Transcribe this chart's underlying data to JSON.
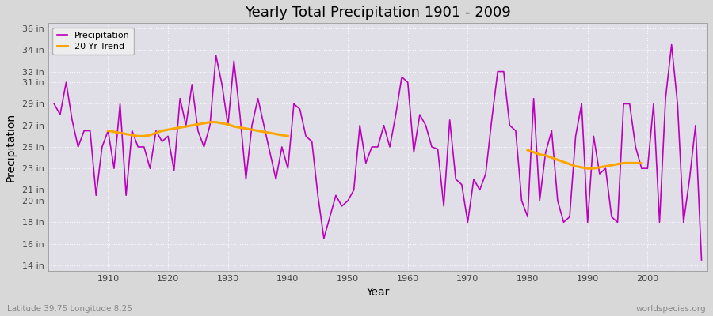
{
  "title": "Yearly Total Precipitation 1901 - 2009",
  "xlabel": "Year",
  "ylabel": "Precipitation",
  "lat_lon_label": "Latitude 39.75 Longitude 8.25",
  "watermark": "worldspecies.org",
  "precip_line_color": "#bb00bb",
  "trend_line_color": "#ffa500",
  "fig_bg_color": "#d8d8d8",
  "plot_bg_color": "#e0dfe8",
  "ylim": [
    13.5,
    36.5
  ],
  "yticks": [
    14,
    16,
    18,
    20,
    21,
    23,
    25,
    27,
    29,
    31,
    32,
    34,
    36
  ],
  "ytick_labels": [
    "14 in",
    "16 in",
    "18 in",
    "20 in",
    "21 in",
    "23 in",
    "25 in",
    "27 in",
    "29 in",
    "31 in",
    "32 in",
    "34 in",
    "36 in"
  ],
  "xlim": [
    1900,
    2010
  ],
  "xticks": [
    1910,
    1920,
    1930,
    1940,
    1950,
    1960,
    1970,
    1980,
    1990,
    2000
  ],
  "years": [
    1901,
    1902,
    1903,
    1904,
    1905,
    1906,
    1907,
    1908,
    1909,
    1910,
    1911,
    1912,
    1913,
    1914,
    1915,
    1916,
    1917,
    1918,
    1919,
    1920,
    1921,
    1922,
    1923,
    1924,
    1925,
    1926,
    1927,
    1928,
    1929,
    1930,
    1931,
    1932,
    1933,
    1934,
    1935,
    1936,
    1937,
    1938,
    1939,
    1940,
    1941,
    1942,
    1943,
    1944,
    1945,
    1946,
    1947,
    1948,
    1949,
    1950,
    1951,
    1952,
    1953,
    1954,
    1955,
    1956,
    1957,
    1958,
    1959,
    1960,
    1961,
    1962,
    1963,
    1964,
    1965,
    1966,
    1967,
    1968,
    1969,
    1970,
    1971,
    1972,
    1973,
    1974,
    1975,
    1976,
    1977,
    1978,
    1979,
    1980,
    1981,
    1982,
    1983,
    1984,
    1985,
    1986,
    1987,
    1988,
    1989,
    1990,
    1991,
    1992,
    1993,
    1994,
    1995,
    1996,
    1997,
    1998,
    1999,
    2000,
    2001,
    2002,
    2003,
    2004,
    2005,
    2006,
    2007,
    2008,
    2009
  ],
  "precip": [
    29.0,
    28.0,
    31.0,
    27.5,
    25.0,
    26.5,
    26.5,
    20.5,
    25.0,
    26.5,
    23.0,
    29.0,
    20.5,
    26.5,
    25.0,
    25.0,
    23.0,
    26.5,
    25.5,
    26.0,
    22.8,
    29.5,
    27.0,
    30.8,
    26.5,
    25.0,
    27.0,
    33.5,
    30.8,
    27.0,
    33.0,
    28.0,
    22.0,
    27.0,
    29.5,
    27.0,
    24.5,
    22.0,
    25.0,
    23.0,
    29.0,
    28.5,
    26.0,
    25.5,
    20.5,
    16.5,
    18.5,
    20.5,
    19.5,
    20.0,
    21.0,
    27.0,
    23.5,
    25.0,
    25.0,
    27.0,
    25.0,
    28.0,
    31.5,
    31.0,
    24.5,
    28.0,
    27.0,
    25.0,
    24.8,
    19.5,
    27.5,
    22.0,
    21.5,
    18.0,
    22.0,
    21.0,
    22.5,
    27.5,
    32.0,
    32.0,
    27.0,
    26.5,
    20.0,
    18.5,
    29.5,
    20.0,
    24.5,
    26.5,
    20.0,
    18.0,
    18.5,
    26.0,
    29.0,
    18.0,
    26.0,
    22.5,
    23.0,
    18.5,
    18.0,
    29.0,
    29.0,
    25.0,
    23.0,
    23.0,
    29.0,
    18.0,
    29.5,
    34.5,
    29.0,
    18.0,
    22.0,
    27.0,
    14.5
  ],
  "trend_segments": [
    {
      "years": [
        1910,
        1911,
        1912,
        1913,
        1914,
        1915,
        1916,
        1917,
        1918,
        1919,
        1920,
        1921,
        1922,
        1923,
        1924,
        1925,
        1926,
        1927,
        1928,
        1929,
        1930,
        1931,
        1932,
        1933,
        1934,
        1935,
        1936,
        1937,
        1938,
        1939,
        1940
      ],
      "values": [
        26.5,
        26.4,
        26.3,
        26.2,
        26.1,
        26.0,
        26.0,
        26.1,
        26.3,
        26.5,
        26.6,
        26.7,
        26.8,
        26.9,
        27.0,
        27.1,
        27.2,
        27.3,
        27.3,
        27.2,
        27.1,
        26.9,
        26.8,
        26.7,
        26.6,
        26.5,
        26.4,
        26.3,
        26.2,
        26.1,
        26.0
      ]
    },
    {
      "years": [
        1980,
        1981,
        1982,
        1983,
        1984,
        1985,
        1986,
        1987,
        1988,
        1989,
        1990,
        1991,
        1992,
        1993,
        1994,
        1995,
        1996,
        1997,
        1998,
        1999
      ],
      "values": [
        24.7,
        24.5,
        24.3,
        24.2,
        24.0,
        23.8,
        23.6,
        23.4,
        23.2,
        23.1,
        23.0,
        23.0,
        23.1,
        23.2,
        23.3,
        23.4,
        23.5,
        23.5,
        23.5,
        23.5
      ]
    }
  ]
}
